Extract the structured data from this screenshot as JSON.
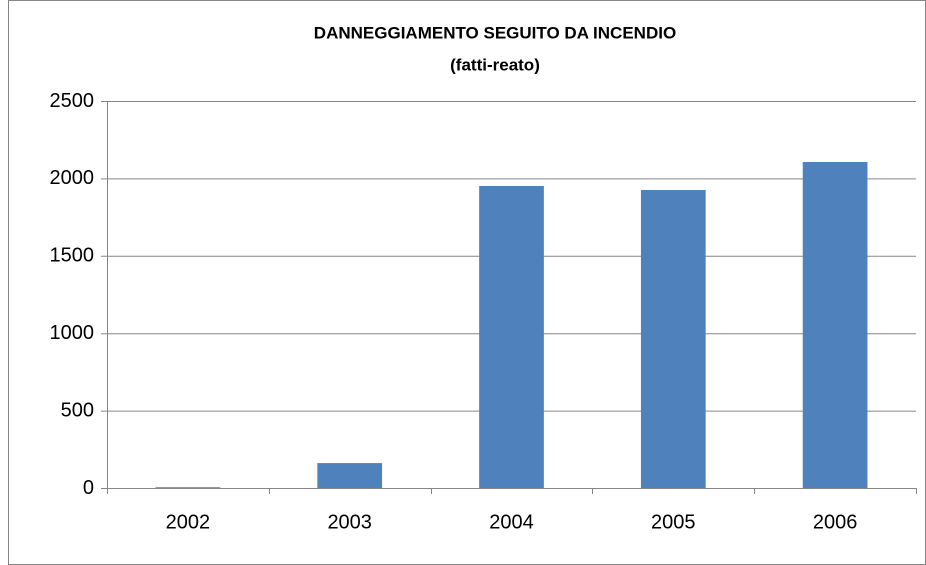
{
  "chart_data": {
    "type": "bar",
    "title": "DANNEGGIAMENTO SEGUITO DA INCENDIO",
    "subtitle": "(fatti-reato)",
    "categories": [
      "2002",
      "2003",
      "2004",
      "2005",
      "2006"
    ],
    "values": [
      5,
      161,
      1951,
      1925,
      2106
    ],
    "color": "#4f81bd",
    "ylim": [
      0,
      2500
    ],
    "yticks": [
      0,
      500,
      1000,
      1500,
      2000,
      2500
    ],
    "grid": true
  }
}
